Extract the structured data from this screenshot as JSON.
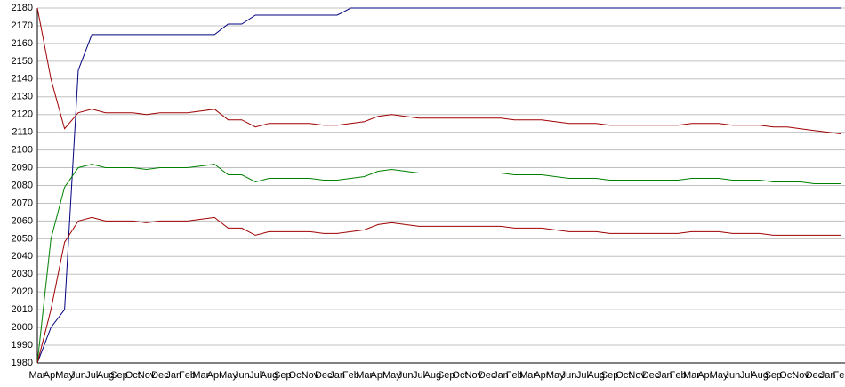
{
  "chart_data": {
    "type": "line",
    "categories": [
      "Mar",
      "Apr",
      "May",
      "Jun",
      "Jul",
      "Aug",
      "Sep",
      "Oct",
      "Nov",
      "Dec",
      "Jan",
      "Feb",
      "Mar",
      "Apr",
      "May",
      "Jun",
      "Jul",
      "Aug",
      "Sep",
      "Oct",
      "Nov",
      "Dec",
      "Jan",
      "Feb",
      "Mar",
      "Apr",
      "May",
      "Jun",
      "Jul",
      "Aug",
      "Sep",
      "Oct",
      "Nov",
      "Dec",
      "Jan",
      "Feb",
      "Mar",
      "Apr",
      "May",
      "Jun",
      "Jul",
      "Aug",
      "Sep",
      "Oct",
      "Nov",
      "Dec",
      "Jan",
      "Feb",
      "Mar",
      "Apr",
      "May",
      "Jun",
      "Jul",
      "Aug",
      "Sep",
      "Oct",
      "Nov",
      "Dec",
      "Jan",
      "Feb"
    ],
    "series": [
      {
        "color": "#000080",
        "values": [
          1980,
          2000,
          2010,
          2145,
          2165,
          2165,
          2165,
          2165,
          2165,
          2165,
          2165,
          2165,
          2165,
          2165,
          2171,
          2171,
          2176,
          2176,
          2176,
          2176,
          2176,
          2176,
          2176,
          2180,
          2180,
          2180,
          2180,
          2180,
          2180,
          2180,
          2180,
          2180,
          2180,
          2180,
          2180,
          2180,
          2180,
          2180,
          2180,
          2180,
          2180,
          2180,
          2180,
          2180,
          2180,
          2180,
          2180,
          2180,
          2180,
          2180,
          2180,
          2180,
          2180,
          2180,
          2180,
          2180,
          2180,
          2180,
          2180,
          2180
        ]
      },
      {
        "color": "#a00000",
        "values": [
          2180,
          2140,
          2112,
          2121,
          2123,
          2121,
          2121,
          2121,
          2120,
          2121,
          2121,
          2121,
          2122,
          2123,
          2117,
          2117,
          2113,
          2115,
          2115,
          2115,
          2115,
          2114,
          2114,
          2115,
          2116,
          2119,
          2120,
          2119,
          2118,
          2118,
          2118,
          2118,
          2118,
          2118,
          2118,
          2117,
          2117,
          2117,
          2116,
          2115,
          2115,
          2115,
          2114,
          2114,
          2114,
          2114,
          2114,
          2114,
          2115,
          2115,
          2115,
          2114,
          2114,
          2114,
          2113,
          2113,
          2112,
          2111,
          2110,
          2109
        ]
      },
      {
        "color": "#008000",
        "values": [
          1980,
          2050,
          2079,
          2090,
          2092,
          2090,
          2090,
          2090,
          2089,
          2090,
          2090,
          2090,
          2091,
          2092,
          2086,
          2086,
          2082,
          2084,
          2084,
          2084,
          2084,
          2083,
          2083,
          2084,
          2085,
          2088,
          2089,
          2088,
          2087,
          2087,
          2087,
          2087,
          2087,
          2087,
          2087,
          2086,
          2086,
          2086,
          2085,
          2084,
          2084,
          2084,
          2083,
          2083,
          2083,
          2083,
          2083,
          2083,
          2084,
          2084,
          2084,
          2083,
          2083,
          2083,
          2082,
          2082,
          2082,
          2081,
          2081,
          2081
        ]
      },
      {
        "color": "#a00000",
        "values": [
          1980,
          2010,
          2048,
          2060,
          2062,
          2060,
          2060,
          2060,
          2059,
          2060,
          2060,
          2060,
          2061,
          2062,
          2056,
          2056,
          2052,
          2054,
          2054,
          2054,
          2054,
          2053,
          2053,
          2054,
          2055,
          2058,
          2059,
          2058,
          2057,
          2057,
          2057,
          2057,
          2057,
          2057,
          2057,
          2056,
          2056,
          2056,
          2055,
          2054,
          2054,
          2054,
          2053,
          2053,
          2053,
          2053,
          2053,
          2053,
          2054,
          2054,
          2054,
          2053,
          2053,
          2053,
          2052,
          2052,
          2052,
          2052,
          2052,
          2052
        ]
      }
    ],
    "ylim": [
      1980,
      2180
    ],
    "yticks": [
      1980,
      1990,
      2000,
      2010,
      2020,
      2030,
      2040,
      2050,
      2060,
      2070,
      2080,
      2090,
      2100,
      2110,
      2120,
      2130,
      2140,
      2150,
      2160,
      2170,
      2180
    ],
    "grid": true
  }
}
